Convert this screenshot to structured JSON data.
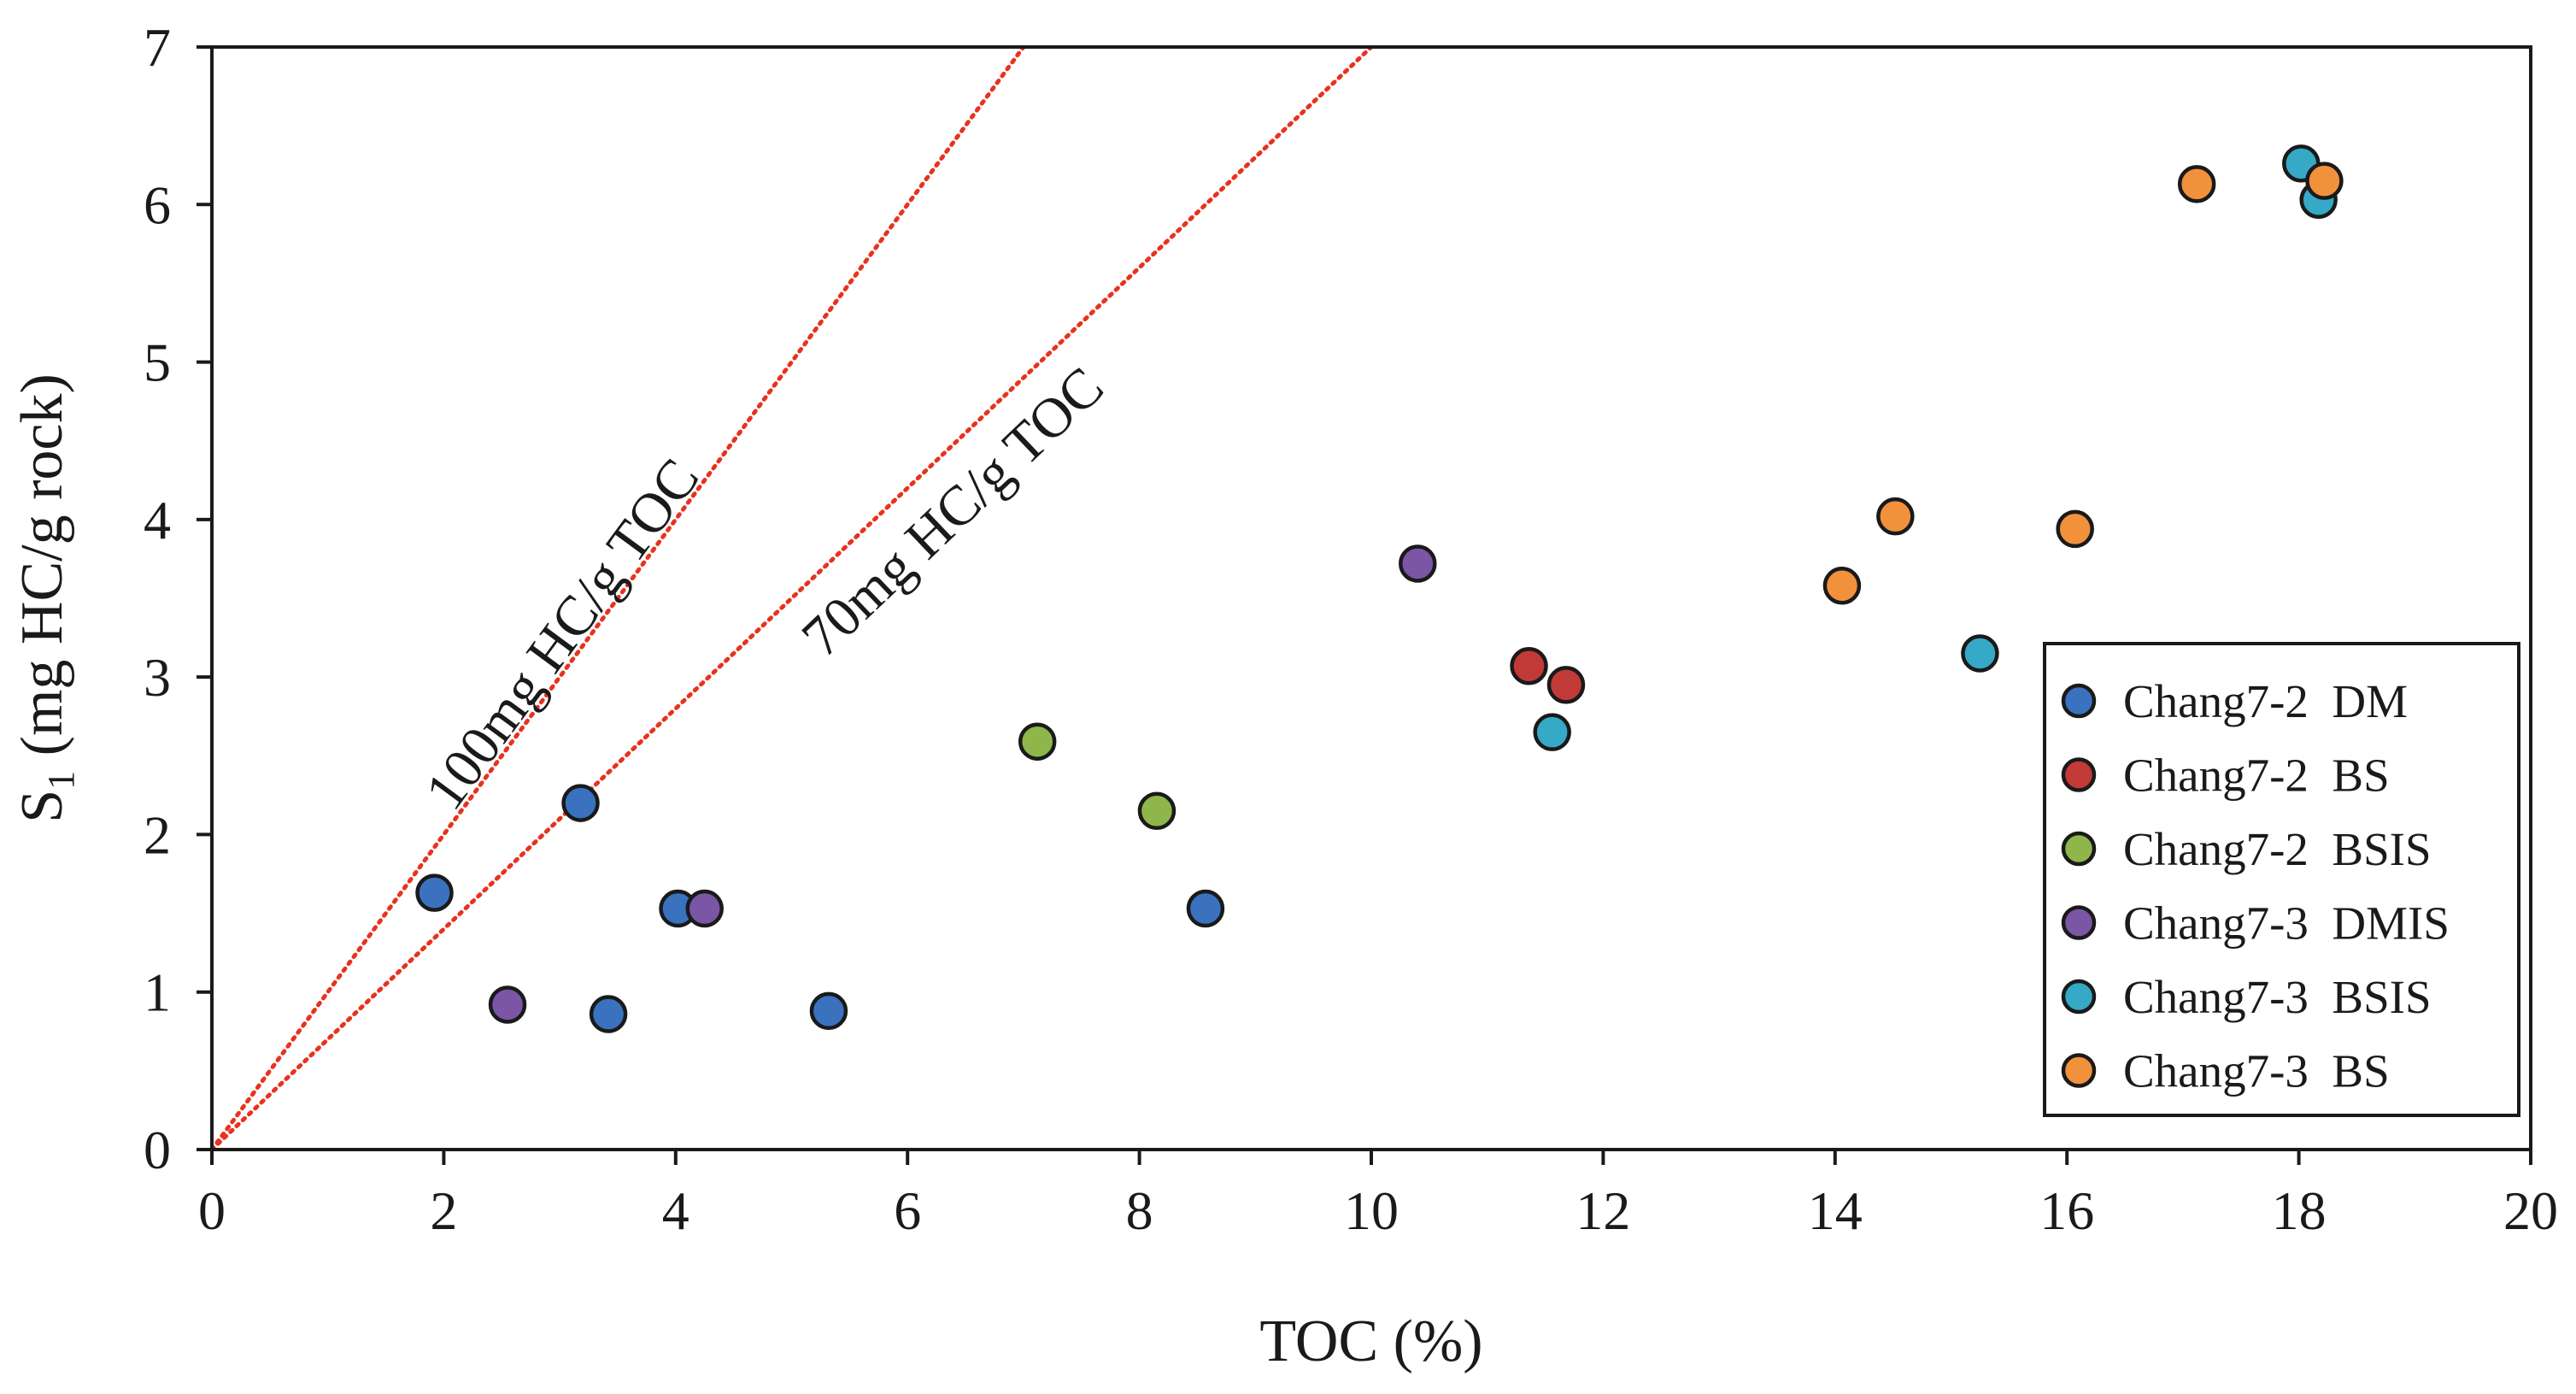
{
  "chart_data": {
    "type": "scatter",
    "xlabel": "TOC (%)",
    "ylabel_main": "S",
    "ylabel_sub": "1",
    "ylabel_rest": " (mg HC/g rock)",
    "xlim": [
      0,
      20
    ],
    "ylim": [
      0,
      7
    ],
    "xticks": [
      0,
      2,
      4,
      6,
      8,
      10,
      12,
      14,
      16,
      18,
      20
    ],
    "yticks": [
      0,
      1,
      2,
      3,
      4,
      5,
      6,
      7
    ],
    "grid": false,
    "legend_position": "bottom-right",
    "reference_lines": [
      {
        "label": "100mg HC/g TOC",
        "slope": 1.0,
        "color": "#e8321e",
        "style": "dotted"
      },
      {
        "label": "70mg HC/g TOC",
        "slope": 0.7,
        "color": "#e8321e",
        "style": "dotted"
      }
    ],
    "series": [
      {
        "name": "Chang7-2  DM",
        "color": "#3a72c0",
        "points": [
          [
            1.92,
            1.63
          ],
          [
            3.18,
            2.2
          ],
          [
            3.42,
            0.86
          ],
          [
            4.02,
            1.53
          ],
          [
            5.32,
            0.88
          ],
          [
            8.57,
            1.53
          ]
        ]
      },
      {
        "name": "Chang7-2  BS",
        "color": "#c23a38",
        "points": [
          [
            11.36,
            3.07
          ],
          [
            11.68,
            2.95
          ]
        ]
      },
      {
        "name": "Chang7-2  BSIS",
        "color": "#8eb64b",
        "points": [
          [
            7.12,
            2.59
          ],
          [
            8.15,
            2.15
          ]
        ]
      },
      {
        "name": "Chang7-3  DMIS",
        "color": "#7b55a6",
        "points": [
          [
            2.55,
            0.92
          ],
          [
            4.25,
            1.53
          ],
          [
            10.4,
            3.72
          ]
        ]
      },
      {
        "name": "Chang7-3  BSIS",
        "color": "#35a9c6",
        "points": [
          [
            11.56,
            2.65
          ],
          [
            15.25,
            3.15
          ],
          [
            18.02,
            6.26
          ],
          [
            18.17,
            6.03
          ]
        ]
      },
      {
        "name": "Chang7-3  BS",
        "color": "#f2913c",
        "points": [
          [
            14.06,
            3.58
          ],
          [
            14.52,
            4.02
          ],
          [
            16.07,
            3.94
          ],
          [
            17.12,
            6.13
          ],
          [
            18.22,
            6.15
          ]
        ]
      }
    ]
  }
}
